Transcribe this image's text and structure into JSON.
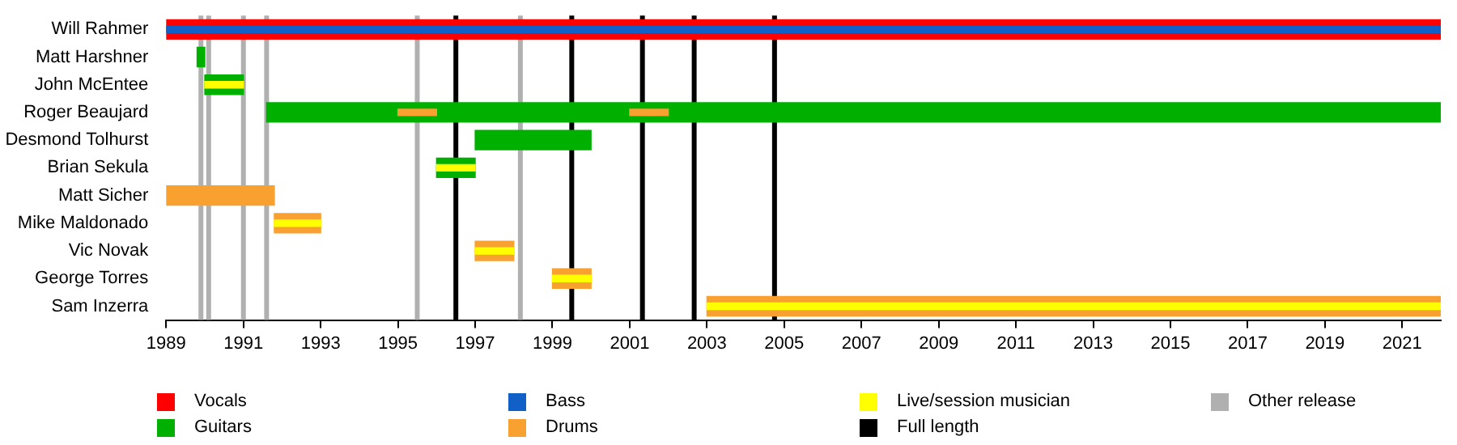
{
  "chart_data": {
    "type": "bar",
    "orientation": "horizontal",
    "categories": [
      "Will Rahmer",
      "Matt Harshner",
      "John McEntee",
      "Roger Beaujard",
      "Desmond Tolhurst",
      "Brian Sekula",
      "Matt Sicher",
      "Mike Maldonado",
      "Vic Novak",
      "George Torres",
      "Sam Inzerra"
    ],
    "series": [
      {
        "name": "Vocals",
        "color": "#ff0000",
        "base": [
          1989,
          null,
          null,
          null,
          null,
          null,
          null,
          null,
          null,
          null,
          null
        ],
        "values": [
          33,
          null,
          null,
          null,
          null,
          null,
          null,
          null,
          null,
          null,
          null
        ]
      },
      {
        "name": "Guitars",
        "color": "#00b000",
        "base": [
          null,
          1989.8,
          1990,
          1991.6,
          1997,
          1996,
          null,
          null,
          null,
          null,
          null
        ],
        "values": [
          null,
          0.2,
          1,
          30.4,
          3,
          1,
          null,
          null,
          null,
          null,
          null
        ]
      },
      {
        "name": "Bass",
        "color": "#1060c8",
        "base": [
          1989,
          null,
          null,
          null,
          null,
          null,
          null,
          null,
          null,
          null,
          null
        ],
        "values": [
          33,
          null,
          null,
          null,
          null,
          null,
          null,
          null,
          null,
          null,
          null
        ]
      },
      {
        "name": "Drums",
        "color": "#f8a030",
        "base": [
          null,
          null,
          null,
          1995,
          null,
          null,
          1989,
          1991.8,
          1997,
          1999,
          2003
        ],
        "values": [
          null,
          null,
          null,
          1,
          null,
          null,
          2.8,
          1.2,
          1,
          1,
          19
        ]
      },
      {
        "color": "#f8a030",
        "base": [
          null,
          null,
          null,
          2001,
          null,
          null,
          null,
          null,
          null,
          null,
          null
        ],
        "values": [
          null,
          null,
          null,
          1,
          null,
          null,
          null,
          null,
          null,
          null,
          null
        ]
      },
      {
        "name": "Live/session musician",
        "color": "#ffff00",
        "base": [
          null,
          null,
          1990,
          null,
          null,
          1996,
          null,
          1991.8,
          1997,
          1999,
          2003
        ],
        "values": [
          null,
          null,
          1,
          null,
          null,
          1,
          null,
          1.2,
          1,
          1,
          19
        ]
      }
    ],
    "xlim": [
      1989,
      2022
    ],
    "xticks": [
      1989,
      1991,
      1993,
      1995,
      1997,
      1999,
      2001,
      2003,
      2005,
      2007,
      2009,
      2011,
      2013,
      2015,
      2017,
      2019,
      2021
    ],
    "ref_lines": [
      {
        "axis": "x",
        "value": 1996.5,
        "label": "Full length",
        "color": "#000000"
      },
      {
        "axis": "x",
        "value": 1999.5,
        "color": "#000000"
      },
      {
        "axis": "x",
        "value": 2001.33,
        "color": "#000000"
      },
      {
        "axis": "x",
        "value": 2002.67,
        "color": "#000000"
      },
      {
        "axis": "x",
        "value": 2004.75,
        "color": "#000000"
      },
      {
        "axis": "x",
        "value": 1989.9,
        "label": "Other release",
        "color": "#b0b0b0"
      },
      {
        "axis": "x",
        "value": 1990.1,
        "color": "#b0b0b0"
      },
      {
        "axis": "x",
        "value": 1991,
        "color": "#b0b0b0"
      },
      {
        "axis": "x",
        "value": 1991.6,
        "color": "#b0b0b0"
      },
      {
        "axis": "x",
        "value": 1995.5,
        "color": "#b0b0b0"
      },
      {
        "axis": "x",
        "value": 1998.17,
        "color": "#b0b0b0"
      }
    ],
    "legend": "bottom"
  }
}
